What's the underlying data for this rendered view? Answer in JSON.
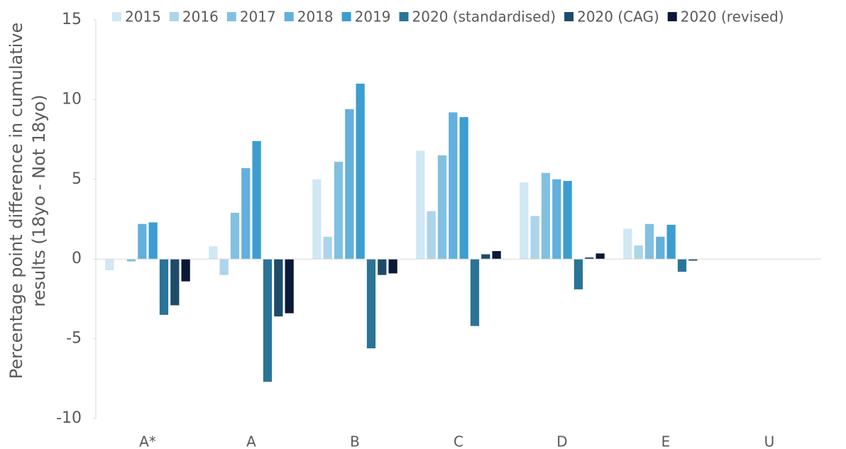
{
  "chart_data": {
    "type": "bar",
    "ylabel": [
      "Percentage point difference in cumulative",
      "results (18yo - Not 18yo)"
    ],
    "categories": [
      "A*",
      "A",
      "B",
      "C",
      "D",
      "E",
      "U"
    ],
    "series": [
      {
        "name": "2015",
        "color": "#d0e7f4",
        "values": [
          -0.7,
          0.8,
          5.0,
          6.8,
          4.8,
          1.9,
          0
        ]
      },
      {
        "name": "2016",
        "color": "#acd4ea",
        "values": [
          0,
          -1.0,
          1.4,
          3.0,
          2.7,
          0.85,
          0
        ]
      },
      {
        "name": "2017",
        "color": "#82c0e1",
        "values": [
          -0.15,
          2.9,
          6.1,
          6.5,
          5.4,
          2.2,
          0
        ]
      },
      {
        "name": "2018",
        "color": "#62b0db",
        "values": [
          2.2,
          5.7,
          9.4,
          9.2,
          5.0,
          1.4,
          0
        ]
      },
      {
        "name": "2019",
        "color": "#3c9dd0",
        "values": [
          2.3,
          7.4,
          11.0,
          8.9,
          4.9,
          2.15,
          0
        ]
      },
      {
        "name": "2020 (standardised)",
        "color": "#2a7497",
        "values": [
          -3.5,
          -7.7,
          -5.6,
          -4.2,
          -1.9,
          -0.8,
          0
        ]
      },
      {
        "name": "2020 (CAG)",
        "color": "#1d4b69",
        "values": [
          -2.9,
          -3.6,
          -1.0,
          0.3,
          0.1,
          -0.1,
          0
        ]
      },
      {
        "name": "2020 (revised)",
        "color": "#0a1935",
        "values": [
          -1.4,
          -3.4,
          -0.9,
          0.5,
          0.35,
          0,
          0
        ]
      }
    ],
    "ylim": [
      -10,
      15
    ],
    "yticks": [
      -10,
      -5,
      0,
      5,
      10,
      15
    ],
    "grid": false,
    "legend": "top"
  }
}
